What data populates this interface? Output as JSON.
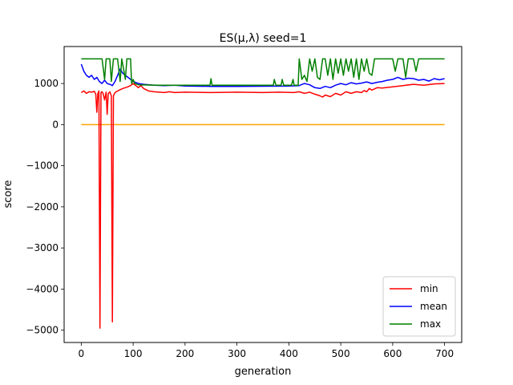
{
  "chart_data": {
    "type": "line",
    "title": "ES(μ,λ) seed=1",
    "xlabel": "generation",
    "ylabel": "score",
    "xlim": [
      -33,
      733
    ],
    "ylim": [
      -5300,
      1900
    ],
    "xticks": [
      0,
      100,
      200,
      300,
      400,
      500,
      600,
      700
    ],
    "yticks": [
      -5000,
      -4000,
      -3000,
      -2000,
      -1000,
      0,
      1000
    ],
    "xtick_labels": [
      "0",
      "100",
      "200",
      "300",
      "400",
      "500",
      "600",
      "700"
    ],
    "ytick_labels": [
      "−5000",
      "−4000",
      "−3000",
      "−2000",
      "−1000",
      "0",
      "1000"
    ],
    "grid": false,
    "legend_position": "bottom-right",
    "baseline": {
      "y": 0,
      "color": "#ffa500"
    },
    "series": [
      {
        "name": "min",
        "color": "#ff0000",
        "points": [
          [
            0,
            780
          ],
          [
            5,
            820
          ],
          [
            10,
            760
          ],
          [
            15,
            800
          ],
          [
            20,
            790
          ],
          [
            25,
            810
          ],
          [
            28,
            740
          ],
          [
            30,
            300
          ],
          [
            32,
            760
          ],
          [
            34,
            820
          ],
          [
            36,
            -4950
          ],
          [
            38,
            780
          ],
          [
            40,
            800
          ],
          [
            42,
            760
          ],
          [
            45,
            600
          ],
          [
            48,
            790
          ],
          [
            50,
            250
          ],
          [
            52,
            750
          ],
          [
            55,
            800
          ],
          [
            58,
            700
          ],
          [
            60,
            -4800
          ],
          [
            62,
            700
          ],
          [
            65,
            780
          ],
          [
            70,
            820
          ],
          [
            75,
            850
          ],
          [
            80,
            880
          ],
          [
            85,
            900
          ],
          [
            90,
            920
          ],
          [
            95,
            950
          ],
          [
            100,
            1000
          ],
          [
            105,
            950
          ],
          [
            110,
            900
          ],
          [
            115,
            950
          ],
          [
            120,
            880
          ],
          [
            130,
            820
          ],
          [
            140,
            800
          ],
          [
            150,
            790
          ],
          [
            160,
            780
          ],
          [
            170,
            800
          ],
          [
            180,
            780
          ],
          [
            200,
            790
          ],
          [
            250,
            780
          ],
          [
            300,
            790
          ],
          [
            350,
            780
          ],
          [
            380,
            790
          ],
          [
            410,
            780
          ],
          [
            420,
            800
          ],
          [
            430,
            760
          ],
          [
            440,
            790
          ],
          [
            450,
            740
          ],
          [
            460,
            700
          ],
          [
            465,
            670
          ],
          [
            470,
            720
          ],
          [
            480,
            680
          ],
          [
            490,
            760
          ],
          [
            500,
            720
          ],
          [
            510,
            800
          ],
          [
            520,
            760
          ],
          [
            530,
            800
          ],
          [
            540,
            780
          ],
          [
            545,
            830
          ],
          [
            550,
            800
          ],
          [
            555,
            880
          ],
          [
            560,
            840
          ],
          [
            570,
            900
          ],
          [
            580,
            890
          ],
          [
            600,
            920
          ],
          [
            620,
            950
          ],
          [
            640,
            980
          ],
          [
            660,
            960
          ],
          [
            680,
            990
          ],
          [
            700,
            1000
          ]
        ]
      },
      {
        "name": "mean",
        "color": "#0000ff",
        "points": [
          [
            0,
            1470
          ],
          [
            5,
            1300
          ],
          [
            10,
            1200
          ],
          [
            15,
            1150
          ],
          [
            20,
            1200
          ],
          [
            25,
            1100
          ],
          [
            30,
            1150
          ],
          [
            35,
            1050
          ],
          [
            40,
            1000
          ],
          [
            45,
            1080
          ],
          [
            50,
            1000
          ],
          [
            55,
            980
          ],
          [
            60,
            950
          ],
          [
            65,
            1050
          ],
          [
            70,
            1200
          ],
          [
            75,
            1350
          ],
          [
            80,
            1250
          ],
          [
            85,
            1200
          ],
          [
            90,
            1150
          ],
          [
            95,
            1100
          ],
          [
            100,
            1050
          ],
          [
            110,
            1000
          ],
          [
            120,
            980
          ],
          [
            140,
            960
          ],
          [
            160,
            950
          ],
          [
            180,
            960
          ],
          [
            200,
            940
          ],
          [
            250,
            930
          ],
          [
            300,
            930
          ],
          [
            350,
            935
          ],
          [
            400,
            940
          ],
          [
            420,
            950
          ],
          [
            430,
            1000
          ],
          [
            440,
            970
          ],
          [
            450,
            900
          ],
          [
            460,
            880
          ],
          [
            470,
            930
          ],
          [
            480,
            900
          ],
          [
            490,
            960
          ],
          [
            500,
            1000
          ],
          [
            510,
            970
          ],
          [
            520,
            1020
          ],
          [
            530,
            990
          ],
          [
            540,
            1010
          ],
          [
            550,
            1040
          ],
          [
            560,
            1000
          ],
          [
            570,
            1030
          ],
          [
            580,
            1050
          ],
          [
            590,
            1080
          ],
          [
            600,
            1100
          ],
          [
            610,
            1150
          ],
          [
            620,
            1100
          ],
          [
            630,
            1130
          ],
          [
            640,
            1120
          ],
          [
            650,
            1080
          ],
          [
            660,
            1100
          ],
          [
            670,
            1060
          ],
          [
            680,
            1120
          ],
          [
            690,
            1090
          ],
          [
            700,
            1120
          ]
        ]
      },
      {
        "name": "max",
        "color": "#008000",
        "points": [
          [
            0,
            1600
          ],
          [
            40,
            1600
          ],
          [
            45,
            1100
          ],
          [
            48,
            1600
          ],
          [
            55,
            1600
          ],
          [
            58,
            1050
          ],
          [
            62,
            1600
          ],
          [
            70,
            1600
          ],
          [
            75,
            1050
          ],
          [
            78,
            1600
          ],
          [
            85,
            1100
          ],
          [
            88,
            1600
          ],
          [
            95,
            1600
          ],
          [
            97,
            1000
          ],
          [
            100,
            1100
          ],
          [
            103,
            1000
          ],
          [
            110,
            970
          ],
          [
            150,
            960
          ],
          [
            200,
            960
          ],
          [
            248,
            960
          ],
          [
            250,
            1120
          ],
          [
            252,
            960
          ],
          [
            300,
            960
          ],
          [
            350,
            960
          ],
          [
            370,
            960
          ],
          [
            372,
            1100
          ],
          [
            375,
            960
          ],
          [
            385,
            960
          ],
          [
            387,
            1100
          ],
          [
            390,
            960
          ],
          [
            405,
            960
          ],
          [
            408,
            1100
          ],
          [
            410,
            960
          ],
          [
            418,
            960
          ],
          [
            420,
            1600
          ],
          [
            425,
            1100
          ],
          [
            430,
            1200
          ],
          [
            435,
            1050
          ],
          [
            440,
            1600
          ],
          [
            445,
            1300
          ],
          [
            450,
            1600
          ],
          [
            455,
            1150
          ],
          [
            460,
            1100
          ],
          [
            465,
            1600
          ],
          [
            470,
            1600
          ],
          [
            475,
            1200
          ],
          [
            480,
            1600
          ],
          [
            485,
            1100
          ],
          [
            490,
            1600
          ],
          [
            495,
            1250
          ],
          [
            500,
            1600
          ],
          [
            505,
            1200
          ],
          [
            510,
            1600
          ],
          [
            515,
            1300
          ],
          [
            520,
            1600
          ],
          [
            525,
            1150
          ],
          [
            530,
            1600
          ],
          [
            535,
            1100
          ],
          [
            540,
            1600
          ],
          [
            545,
            1300
          ],
          [
            550,
            1600
          ],
          [
            555,
            1250
          ],
          [
            560,
            1200
          ],
          [
            565,
            1600
          ],
          [
            570,
            1600
          ],
          [
            600,
            1600
          ],
          [
            605,
            1300
          ],
          [
            610,
            1600
          ],
          [
            620,
            1600
          ],
          [
            625,
            1150
          ],
          [
            630,
            1600
          ],
          [
            640,
            1600
          ],
          [
            645,
            1300
          ],
          [
            650,
            1600
          ],
          [
            660,
            1600
          ],
          [
            700,
            1600
          ]
        ]
      }
    ]
  }
}
